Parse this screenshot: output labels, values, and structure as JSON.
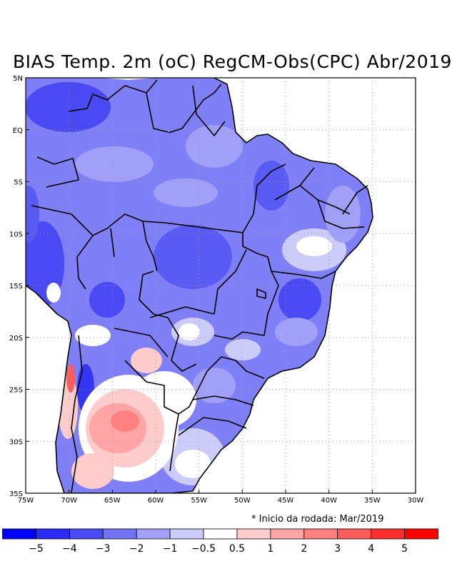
{
  "title": "BIAS Temp. 2m (oC) RegCM-Obs(CPC) Abr/2019",
  "note": "* Inicio da rodada: Mar/2019",
  "map": {
    "lon_range": [
      -75,
      -30
    ],
    "lat_range": [
      -35,
      5
    ],
    "lon_ticks": [
      {
        "lon": -75,
        "label": "75W"
      },
      {
        "lon": -70,
        "label": "70W"
      },
      {
        "lon": -65,
        "label": "65W"
      },
      {
        "lon": -60,
        "label": "60W"
      },
      {
        "lon": -55,
        "label": "55W"
      },
      {
        "lon": -50,
        "label": "50W"
      },
      {
        "lon": -45,
        "label": "45W"
      },
      {
        "lon": -40,
        "label": "40W"
      },
      {
        "lon": -35,
        "label": "35W"
      },
      {
        "lon": -30,
        "label": "30W"
      }
    ],
    "lat_ticks": [
      {
        "lat": 5,
        "label": "5N"
      },
      {
        "lat": 0,
        "label": "EQ"
      },
      {
        "lat": -5,
        "label": "5S"
      },
      {
        "lat": -10,
        "label": "10S"
      },
      {
        "lat": -15,
        "label": "15S"
      },
      {
        "lat": -20,
        "label": "20S"
      },
      {
        "lat": -25,
        "label": "25S"
      },
      {
        "lat": -30,
        "label": "30S"
      },
      {
        "lat": -35,
        "label": "35S"
      }
    ],
    "grid": "dotted"
  },
  "colorbar": {
    "colors": [
      "#0000ff",
      "#2b2bf5",
      "#4a4af5",
      "#7272f7",
      "#a0a0f8",
      "#ccccfb",
      "#ffffff",
      "#ffcccc",
      "#ffa5a5",
      "#ff8080",
      "#ff5c5c",
      "#ff2e2e",
      "#ff0000"
    ],
    "labels": [
      "−5",
      "−4",
      "−3",
      "−2",
      "−1",
      "−0.5",
      "0.5",
      "1",
      "2",
      "3",
      "4",
      "5"
    ]
  }
}
